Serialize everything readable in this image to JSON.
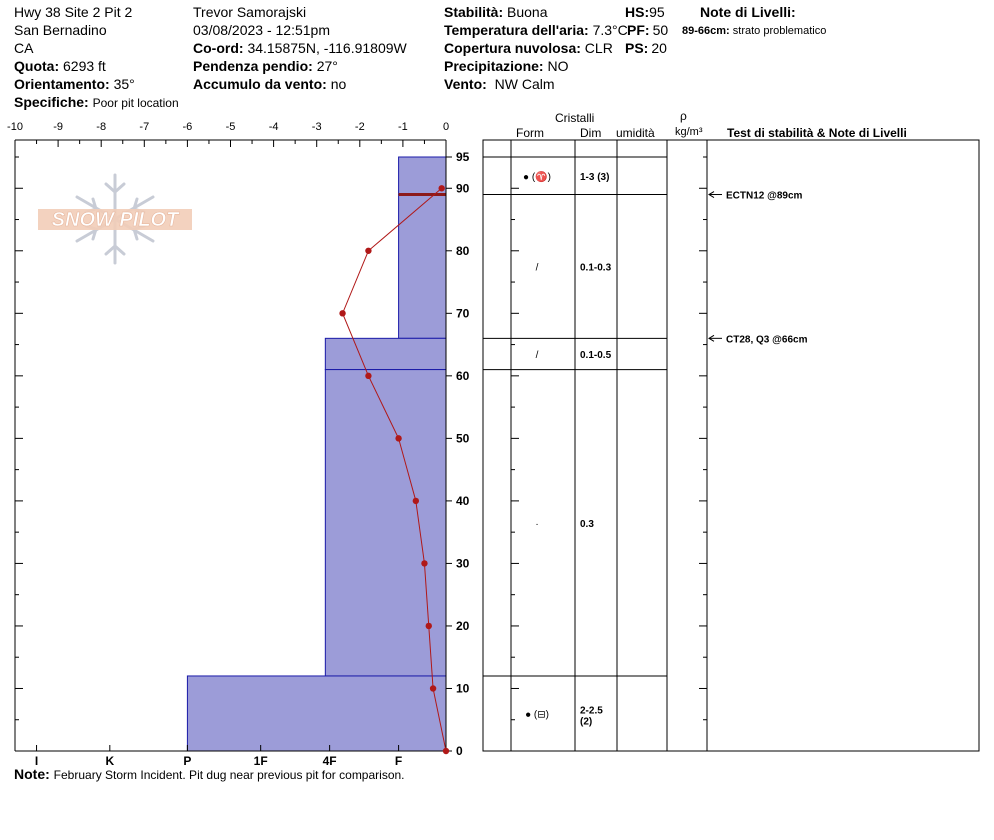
{
  "header": {
    "site_line1": "Hwy 38 Site 2 Pit 2",
    "site_line2": "San Bernadino",
    "site_line3": "CA",
    "quota_label": "Quota:",
    "quota_value": "6293 ft",
    "orient_label": "Orientamento:",
    "orient_value": "35°",
    "spec_label": "Specifiche:",
    "spec_value": "Poor pit location",
    "observer": "Trevor Samorajski",
    "datetime": "03/08/2023 - 12:51pm",
    "coord_label": "Co-ord:",
    "coord_value": "34.15875N, -116.91809W",
    "slope_label": "Pendenza pendio:",
    "slope_value": "27°",
    "wind_load_label": "Accumulo da vento:",
    "wind_load_value": "no",
    "stab_label": "Stabilità:",
    "stab_value": "Buona",
    "temp_label": "Temperatura dell'aria:",
    "temp_value": "7.3°C",
    "cloud_label": "Copertura nuvolosa:",
    "cloud_value": "CLR",
    "precip_label": "Precipitazione:",
    "precip_value": "NO",
    "wind_label": "Vento:",
    "wind_value": "NW Calm",
    "hs_label": "HS:",
    "hs_value": "95",
    "pf_label": "PF:",
    "pf_value": "50",
    "ps_label": "PS:",
    "ps_value": "20",
    "notes_title": "Note di Livelli:",
    "notes_range": "89-66cm:",
    "notes_text": "strato problematico"
  },
  "footer": {
    "note_label": "Note:",
    "note_text": "February Storm Incident. Pit dug near previous pit for comparison."
  },
  "logo_text": "SNOW PILOT",
  "columns": {
    "cristalli": "Cristalli",
    "form": "Form",
    "dim": "Dim",
    "umidita": "umidità",
    "rho": "ρ",
    "density_unit": "kg/m³",
    "tests": "Test di stabilità & Note di Livelli"
  },
  "chart_data": {
    "type": "snow-profile",
    "temp_axis": {
      "min": -10,
      "max": 0,
      "ticks": [
        "-10",
        "-9",
        "-8",
        "-7",
        "-6",
        "-5",
        "-4",
        "-3",
        "-2",
        "-1",
        "0"
      ]
    },
    "depth_axis": {
      "min": 0,
      "max": 95,
      "ticks": [
        0,
        10,
        20,
        30,
        40,
        50,
        60,
        70,
        80,
        90,
        95
      ]
    },
    "hardness_ticks": [
      {
        "label": "I",
        "value": -9.5
      },
      {
        "label": "K",
        "value": -7.8
      },
      {
        "label": "P",
        "value": -6
      },
      {
        "label": "1F",
        "value": -4.3
      },
      {
        "label": "4F",
        "value": -2.7
      },
      {
        "label": "F",
        "value": -1.1
      }
    ],
    "layers": [
      {
        "top": 95,
        "bottom": 89,
        "hardness": -1.1,
        "form": "● (♈)",
        "dim": "1-3 (3)"
      },
      {
        "top": 89,
        "bottom": 66,
        "hardness": -1.1,
        "form": "/",
        "dim": "0.1-0.3"
      },
      {
        "top": 66,
        "bottom": 61,
        "hardness": -2.8,
        "form": "/",
        "dim": "0.1-0.5"
      },
      {
        "top": 61,
        "bottom": 12,
        "hardness": -2.8,
        "form": "·",
        "dim": "0.3"
      },
      {
        "top": 12,
        "bottom": 0,
        "hardness": -6,
        "form": "● (⊟)",
        "dim": "2-2.5 (2)"
      }
    ],
    "temperature_profile": [
      {
        "depth": 90,
        "temp": -0.1
      },
      {
        "depth": 80,
        "temp": -1.8
      },
      {
        "depth": 70,
        "temp": -2.4
      },
      {
        "depth": 60,
        "temp": -1.8
      },
      {
        "depth": 50,
        "temp": -1.1
      },
      {
        "depth": 40,
        "temp": -0.7
      },
      {
        "depth": 30,
        "temp": -0.5
      },
      {
        "depth": 20,
        "temp": -0.4
      },
      {
        "depth": 10,
        "temp": -0.3
      },
      {
        "depth": 0,
        "temp": 0
      }
    ],
    "problem_line_depth": 89,
    "tests": [
      {
        "depth": 89,
        "label": "ECTN12 @89cm"
      },
      {
        "depth": 66,
        "label": "CT28, Q3 @66cm"
      }
    ],
    "colors": {
      "layer_fill": "#9c9cd8",
      "layer_stroke": "#1a1aa8",
      "temp_line": "#b01818",
      "problem_line": "#8c1a1a"
    }
  }
}
